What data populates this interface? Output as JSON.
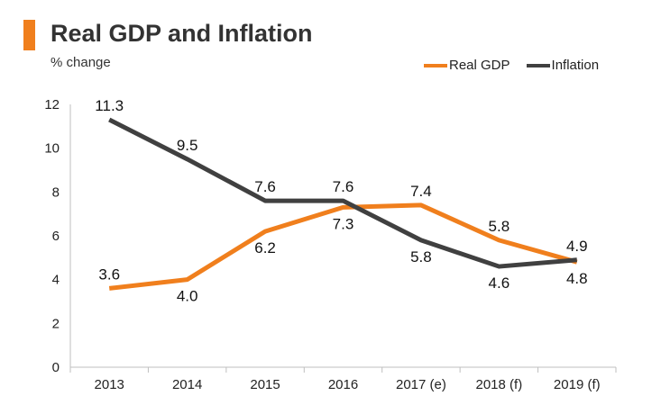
{
  "header": {
    "title": "Real GDP and Inflation",
    "subtitle": "% change",
    "accent_color": "#f07f1d"
  },
  "chart_data": {
    "type": "line",
    "title": "Real GDP and Inflation",
    "subtitle": "% change",
    "xlabel": "",
    "ylabel": "% change",
    "categories": [
      "2013",
      "2014",
      "2015",
      "2016",
      "2017 (e)",
      "2018 (f)",
      "2019 (f)"
    ],
    "ylim": [
      0,
      12
    ],
    "yticks": [
      0,
      2,
      4,
      6,
      8,
      10,
      12
    ],
    "grid": false,
    "legend_position": "top-right",
    "series": [
      {
        "name": "Real GDP",
        "color": "#f07f1d",
        "values": [
          3.6,
          4.0,
          6.2,
          7.3,
          7.4,
          5.8,
          4.8
        ],
        "labels": [
          "3.6",
          "4.0",
          "6.2",
          "7.3",
          "7.4",
          "5.8",
          "4.8"
        ]
      },
      {
        "name": "Inflation",
        "color": "#404040",
        "values": [
          11.3,
          9.5,
          7.6,
          7.6,
          5.8,
          4.6,
          4.9
        ],
        "labels": [
          "11.3",
          "9.5",
          "7.6",
          "7.6",
          "5.8",
          "4.6",
          "4.9"
        ]
      }
    ]
  }
}
